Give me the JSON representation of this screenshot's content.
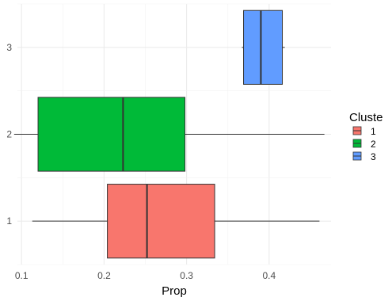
{
  "chart_data": {
    "type": "boxplot",
    "orientation": "horizontal",
    "title": "",
    "xlabel": "Prop",
    "ylabel": "",
    "xlim": [
      0.095,
      0.475
    ],
    "x_ticks": [
      0.1,
      0.2,
      0.3,
      0.4
    ],
    "x_tick_labels": [
      "0.1",
      "0.2",
      "0.3",
      "0.4"
    ],
    "categories": [
      "1",
      "2",
      "3"
    ],
    "grid": true,
    "legend": {
      "title": "Cluste",
      "placement": "right",
      "entries": [
        {
          "label": "1",
          "color": "#F8766D"
        },
        {
          "label": "2",
          "color": "#00BA38"
        },
        {
          "label": "3",
          "color": "#619CFF"
        }
      ]
    },
    "boxes": [
      {
        "category": "1",
        "min": 0.113,
        "q1": 0.204,
        "median": 0.252,
        "q3": 0.334,
        "max": 0.461,
        "color": "#F8766D"
      },
      {
        "category": "2",
        "min": 0.091,
        "q1": 0.12,
        "median": 0.223,
        "q3": 0.298,
        "max": 0.467,
        "color": "#00BA38"
      },
      {
        "category": "3",
        "min": 0.367,
        "q1": 0.369,
        "median": 0.39,
        "q3": 0.416,
        "max": 0.419,
        "color": "#619CFF"
      }
    ]
  }
}
